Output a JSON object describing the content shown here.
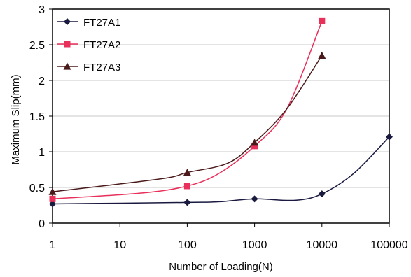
{
  "chart_data": {
    "type": "line",
    "xscale": "log",
    "xlim": [
      1,
      100000
    ],
    "ylim": [
      0,
      3
    ],
    "grid": "horizontal",
    "legend": "top-left",
    "xlabel": "Number of Loading(N)",
    "ylabel": "Maximum Slip(mm)",
    "x_tick_labels": [
      "1",
      "10",
      "100",
      "1000",
      "10000",
      "100000"
    ],
    "y_tick_labels": [
      "0",
      "0.5",
      "1",
      "1.5",
      "2",
      "2.5",
      "3"
    ],
    "series": [
      {
        "name": "FT27A1",
        "color": "#1a1a40",
        "marker": "diamond",
        "markers": [
          [
            1,
            0.27
          ],
          [
            100,
            0.29
          ],
          [
            1000,
            0.34
          ],
          [
            10000,
            0.41
          ],
          [
            100000,
            1.21
          ]
        ],
        "curve": [
          [
            1,
            0.27
          ],
          [
            100,
            0.29
          ],
          [
            300,
            0.3
          ],
          [
            1000,
            0.34
          ],
          [
            4000,
            0.32
          ],
          [
            10000,
            0.41
          ],
          [
            30000,
            0.7
          ],
          [
            100000,
            1.21
          ]
        ]
      },
      {
        "name": "FT27A2",
        "color": "#e8305a",
        "marker": "square",
        "markers": [
          [
            1,
            0.34
          ],
          [
            100,
            0.52
          ],
          [
            1000,
            1.08
          ],
          [
            10000,
            2.83
          ]
        ],
        "curve": [
          [
            1,
            0.34
          ],
          [
            20,
            0.42
          ],
          [
            100,
            0.52
          ],
          [
            300,
            0.7
          ],
          [
            1000,
            1.08
          ],
          [
            3000,
            1.6
          ],
          [
            10000,
            2.83
          ]
        ]
      },
      {
        "name": "FT27A3",
        "color": "#4a1a1a",
        "marker": "triangle",
        "markers": [
          [
            1,
            0.44
          ],
          [
            100,
            0.71
          ],
          [
            1000,
            1.13
          ],
          [
            10000,
            2.35
          ]
        ],
        "curve": [
          [
            1,
            0.44
          ],
          [
            40,
            0.62
          ],
          [
            100,
            0.71
          ],
          [
            400,
            0.84
          ],
          [
            1000,
            1.13
          ],
          [
            3000,
            1.6
          ],
          [
            10000,
            2.35
          ]
        ]
      }
    ]
  }
}
